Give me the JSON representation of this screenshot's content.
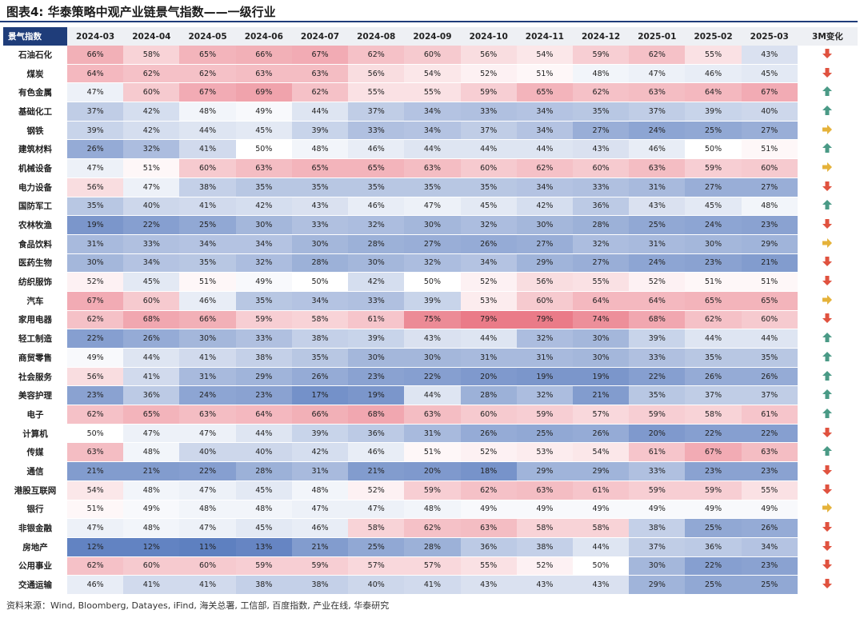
{
  "title": "图表4:  华泰策略中观产业链景气指数——一级行业",
  "source": "资料来源：Wind, Bloomberg, Datayes, iFind, 海关总署, 工信部, 百度指数, 产业在线, 华泰研究",
  "corner_label": "景气指数",
  "trend_label": "3M变化",
  "colors": {
    "low": "#5b7dbf",
    "mid": "#ffffff",
    "high": "#e8707e",
    "up": "#4a9a86",
    "down": "#e0523f",
    "flat": "#e5b23a"
  },
  "chart_data": {
    "type": "heatmap",
    "columns": [
      "2024-03",
      "2024-04",
      "2024-05",
      "2024-06",
      "2024-07",
      "2024-08",
      "2024-09",
      "2024-10",
      "2024-11",
      "2024-12",
      "2025-01",
      "2025-02",
      "2025-03"
    ],
    "value_range": [
      0,
      80
    ],
    "rows": [
      {
        "name": "石油石化",
        "values": [
          66,
          58,
          65,
          66,
          67,
          62,
          60,
          56,
          54,
          59,
          62,
          55,
          43
        ],
        "trend": "down"
      },
      {
        "name": "煤炭",
        "values": [
          64,
          62,
          62,
          63,
          63,
          56,
          54,
          52,
          51,
          48,
          47,
          46,
          45
        ],
        "trend": "down"
      },
      {
        "name": "有色金属",
        "values": [
          47,
          60,
          67,
          69,
          62,
          55,
          55,
          59,
          65,
          62,
          63,
          64,
          67
        ],
        "trend": "up"
      },
      {
        "name": "基础化工",
        "values": [
          37,
          42,
          48,
          49,
          44,
          37,
          34,
          33,
          34,
          35,
          37,
          39,
          40
        ],
        "trend": "up"
      },
      {
        "name": "钢铁",
        "values": [
          39,
          42,
          44,
          45,
          39,
          33,
          34,
          37,
          34,
          27,
          24,
          25,
          27
        ],
        "trend": "flat"
      },
      {
        "name": "建筑材料",
        "values": [
          26,
          32,
          41,
          50,
          48,
          46,
          44,
          44,
          44,
          43,
          46,
          50,
          51
        ],
        "trend": "up"
      },
      {
        "name": "机械设备",
        "values": [
          47,
          51,
          60,
          63,
          65,
          65,
          63,
          60,
          62,
          60,
          63,
          59,
          60
        ],
        "trend": "flat"
      },
      {
        "name": "电力设备",
        "values": [
          56,
          47,
          38,
          35,
          35,
          35,
          35,
          35,
          34,
          33,
          31,
          27,
          27
        ],
        "trend": "down"
      },
      {
        "name": "国防军工",
        "values": [
          35,
          40,
          41,
          42,
          43,
          46,
          47,
          45,
          42,
          36,
          43,
          45,
          48
        ],
        "trend": "up"
      },
      {
        "name": "农林牧渔",
        "values": [
          19,
          22,
          25,
          30,
          33,
          32,
          30,
          32,
          30,
          28,
          25,
          24,
          23
        ],
        "trend": "down"
      },
      {
        "name": "食品饮料",
        "values": [
          31,
          33,
          34,
          34,
          30,
          28,
          27,
          26,
          27,
          32,
          31,
          30,
          29
        ],
        "trend": "flat"
      },
      {
        "name": "医药生物",
        "values": [
          30,
          34,
          35,
          32,
          28,
          30,
          32,
          34,
          29,
          27,
          24,
          23,
          21
        ],
        "trend": "down"
      },
      {
        "name": "纺织服饰",
        "values": [
          52,
          45,
          51,
          49,
          50,
          42,
          50,
          52,
          56,
          55,
          52,
          51,
          51
        ],
        "trend": "down"
      },
      {
        "name": "汽车",
        "values": [
          67,
          60,
          46,
          35,
          34,
          33,
          39,
          53,
          60,
          64,
          64,
          65,
          65
        ],
        "trend": "flat"
      },
      {
        "name": "家用电器",
        "values": [
          62,
          68,
          66,
          59,
          58,
          61,
          75,
          79,
          79,
          74,
          68,
          62,
          60
        ],
        "trend": "down"
      },
      {
        "name": "轻工制造",
        "values": [
          22,
          26,
          30,
          33,
          38,
          39,
          43,
          44,
          32,
          30,
          39,
          44,
          44
        ],
        "trend": "up"
      },
      {
        "name": "商贸零售",
        "values": [
          49,
          44,
          41,
          38,
          35,
          30,
          30,
          31,
          31,
          30,
          33,
          35,
          35
        ],
        "trend": "up"
      },
      {
        "name": "社会服务",
        "values": [
          56,
          41,
          31,
          29,
          26,
          23,
          22,
          20,
          19,
          19,
          22,
          26,
          26
        ],
        "trend": "up"
      },
      {
        "name": "美容护理",
        "values": [
          23,
          36,
          24,
          23,
          17,
          19,
          44,
          28,
          32,
          21,
          35,
          37,
          37
        ],
        "trend": "up"
      },
      {
        "name": "电子",
        "values": [
          62,
          65,
          63,
          64,
          66,
          68,
          63,
          60,
          59,
          57,
          59,
          58,
          61
        ],
        "trend": "up"
      },
      {
        "name": "计算机",
        "values": [
          50,
          47,
          47,
          44,
          39,
          36,
          31,
          26,
          25,
          26,
          20,
          22,
          22
        ],
        "trend": "down"
      },
      {
        "name": "传媒",
        "values": [
          63,
          48,
          40,
          40,
          42,
          46,
          51,
          52,
          53,
          54,
          61,
          67,
          63
        ],
        "trend": "up"
      },
      {
        "name": "通信",
        "values": [
          21,
          21,
          22,
          28,
          31,
          21,
          20,
          18,
          29,
          29,
          33,
          23,
          23
        ],
        "trend": "down"
      },
      {
        "name": "港股互联网",
        "values": [
          54,
          48,
          47,
          45,
          48,
          52,
          59,
          62,
          63,
          61,
          59,
          59,
          55
        ],
        "trend": "down"
      },
      {
        "name": "银行",
        "values": [
          51,
          49,
          48,
          48,
          47,
          47,
          48,
          49,
          49,
          49,
          49,
          49,
          49
        ],
        "trend": "flat"
      },
      {
        "name": "非银金融",
        "values": [
          47,
          48,
          47,
          45,
          46,
          58,
          62,
          63,
          58,
          58,
          38,
          25,
          26
        ],
        "trend": "down"
      },
      {
        "name": "房地产",
        "values": [
          12,
          12,
          11,
          13,
          21,
          25,
          28,
          36,
          38,
          44,
          37,
          36,
          34
        ],
        "trend": "down"
      },
      {
        "name": "公用事业",
        "values": [
          62,
          60,
          60,
          59,
          59,
          57,
          57,
          55,
          52,
          50,
          30,
          22,
          23
        ],
        "trend": "down"
      },
      {
        "name": "交通运输",
        "values": [
          46,
          41,
          41,
          38,
          38,
          40,
          41,
          43,
          43,
          43,
          29,
          25,
          25
        ],
        "trend": "down"
      }
    ]
  }
}
